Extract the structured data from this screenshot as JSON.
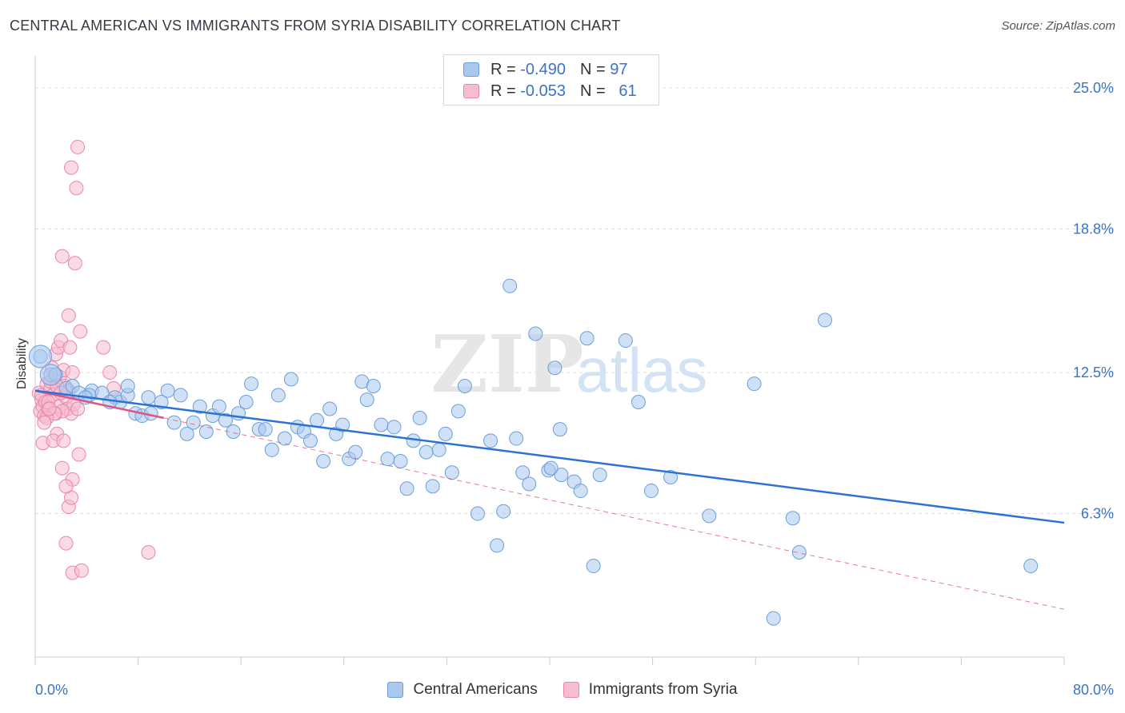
{
  "title": "CENTRAL AMERICAN VS IMMIGRANTS FROM SYRIA DISABILITY CORRELATION CHART",
  "source": "Source: ZipAtlas.com",
  "watermark": {
    "zip": "ZIP",
    "atlas": "atlas"
  },
  "legend_top": [
    {
      "r_label": "R =",
      "r_value": "-0.490",
      "n_label": "N =",
      "n_value": "97"
    },
    {
      "r_label": "R =",
      "r_value": "-0.053",
      "n_label": "N =",
      "n_value": "61"
    }
  ],
  "colors": {
    "blue_fill": "#aac8ee",
    "blue_stroke": "#6a9fdc",
    "blue_line": "#2a72d4",
    "pink_fill": "#f6bcd0",
    "pink_stroke": "#ea86a8",
    "pink_line": "#e05588",
    "axis_text": "#3a73c8",
    "grid": "#dddddd"
  },
  "chart_data": {
    "type": "scatter",
    "xlabel": "",
    "ylabel": "Disability",
    "xlim": [
      0,
      80
    ],
    "ylim": [
      0,
      26.4
    ],
    "x_tick_labels": [
      {
        "value": 0,
        "label": "0.0%"
      },
      {
        "value": 80,
        "label": "80.0%"
      }
    ],
    "y_tick_labels": [
      {
        "value": 6.3,
        "label": "6.3%"
      },
      {
        "value": 12.5,
        "label": "12.5%"
      },
      {
        "value": 18.8,
        "label": "18.8%"
      },
      {
        "value": 25.0,
        "label": "25.0%"
      }
    ],
    "grid": "horizontal dashed",
    "legend_position": "bottom",
    "series": [
      {
        "name": "Central Americans",
        "color": "#aac8ee",
        "trend": {
          "x": [
            0,
            80
          ],
          "y": [
            11.7,
            5.9
          ],
          "style": "solid"
        },
        "points": [
          [
            0.4,
            13.2
          ],
          [
            1.2,
            12.4
          ],
          [
            1.6,
            12.4
          ],
          [
            2.4,
            11.8
          ],
          [
            2.9,
            11.9
          ],
          [
            3.4,
            11.6
          ],
          [
            4.4,
            11.7
          ],
          [
            4.2,
            11.5
          ],
          [
            5.2,
            11.6
          ],
          [
            6.2,
            11.4
          ],
          [
            6.6,
            11.2
          ],
          [
            7.2,
            11.5
          ],
          [
            7.2,
            11.9
          ],
          [
            7.8,
            10.7
          ],
          [
            8.3,
            10.6
          ],
          [
            8.8,
            11.4
          ],
          [
            9.0,
            10.7
          ],
          [
            9.8,
            11.2
          ],
          [
            10.3,
            11.7
          ],
          [
            10.8,
            10.3
          ],
          [
            11.3,
            11.5
          ],
          [
            11.8,
            9.8
          ],
          [
            12.3,
            10.3
          ],
          [
            12.8,
            11.0
          ],
          [
            13.3,
            9.9
          ],
          [
            13.8,
            10.6
          ],
          [
            14.3,
            11.0
          ],
          [
            14.8,
            10.4
          ],
          [
            15.4,
            9.9
          ],
          [
            15.8,
            10.7
          ],
          [
            16.4,
            11.2
          ],
          [
            16.8,
            12.0
          ],
          [
            17.4,
            10.0
          ],
          [
            17.9,
            10.0
          ],
          [
            18.4,
            9.1
          ],
          [
            18.9,
            11.5
          ],
          [
            19.4,
            9.6
          ],
          [
            19.9,
            12.2
          ],
          [
            20.4,
            10.1
          ],
          [
            20.9,
            9.9
          ],
          [
            21.4,
            9.5
          ],
          [
            21.9,
            10.4
          ],
          [
            22.4,
            8.6
          ],
          [
            22.9,
            10.9
          ],
          [
            23.4,
            9.8
          ],
          [
            23.9,
            10.2
          ],
          [
            24.4,
            8.7
          ],
          [
            24.9,
            9.0
          ],
          [
            25.4,
            12.1
          ],
          [
            25.8,
            11.3
          ],
          [
            26.3,
            11.9
          ],
          [
            26.9,
            10.2
          ],
          [
            27.4,
            8.7
          ],
          [
            27.9,
            10.1
          ],
          [
            28.4,
            8.6
          ],
          [
            28.9,
            7.4
          ],
          [
            29.4,
            9.5
          ],
          [
            29.9,
            10.5
          ],
          [
            30.4,
            9.0
          ],
          [
            30.9,
            7.5
          ],
          [
            31.4,
            9.1
          ],
          [
            31.9,
            9.8
          ],
          [
            32.4,
            8.1
          ],
          [
            32.9,
            10.8
          ],
          [
            33.4,
            11.9
          ],
          [
            34.4,
            6.3
          ],
          [
            35.4,
            9.5
          ],
          [
            35.9,
            4.9
          ],
          [
            36.4,
            6.4
          ],
          [
            37.4,
            9.6
          ],
          [
            37.9,
            8.1
          ],
          [
            38.4,
            7.6
          ],
          [
            36.9,
            16.3
          ],
          [
            38.9,
            14.2
          ],
          [
            39.9,
            8.2
          ],
          [
            40.4,
            12.7
          ],
          [
            40.9,
            8.0
          ],
          [
            40.1,
            8.3
          ],
          [
            41.9,
            7.7
          ],
          [
            42.4,
            7.3
          ],
          [
            40.8,
            10.0
          ],
          [
            42.9,
            14.0
          ],
          [
            43.9,
            8.0
          ],
          [
            43.4,
            4.0
          ],
          [
            45.9,
            13.9
          ],
          [
            46.9,
            11.2
          ],
          [
            47.9,
            7.3
          ],
          [
            49.4,
            7.9
          ],
          [
            52.4,
            6.2
          ],
          [
            55.9,
            12.0
          ],
          [
            58.9,
            6.1
          ],
          [
            59.4,
            4.6
          ],
          [
            61.4,
            14.8
          ],
          [
            57.4,
            1.7
          ],
          [
            77.4,
            4.0
          ],
          [
            3.9,
            11.4
          ],
          [
            5.8,
            11.2
          ]
        ]
      },
      {
        "name": "Immigrants from Syria",
        "color": "#f6bcd0",
        "trend": {
          "x": [
            0,
            10
          ],
          "y": [
            11.7,
            10.5
          ],
          "style": "solid"
        },
        "trend_extended": {
          "x": [
            0,
            80
          ],
          "y": [
            11.7,
            2.1
          ],
          "style": "dashed"
        },
        "points": [
          [
            0.3,
            11.6
          ],
          [
            0.5,
            11.3
          ],
          [
            0.4,
            10.8
          ],
          [
            0.6,
            11.0
          ],
          [
            0.7,
            10.6
          ],
          [
            0.9,
            12.0
          ],
          [
            0.5,
            11.5
          ],
          [
            0.8,
            11.2
          ],
          [
            1.0,
            10.9
          ],
          [
            1.2,
            11.8
          ],
          [
            0.6,
            9.4
          ],
          [
            1.3,
            12.7
          ],
          [
            1.4,
            11.5
          ],
          [
            1.6,
            10.7
          ],
          [
            1.8,
            11.0
          ],
          [
            1.9,
            12.3
          ],
          [
            1.2,
            12.1
          ],
          [
            1.6,
            13.3
          ],
          [
            1.8,
            13.6
          ],
          [
            2.0,
            13.9
          ],
          [
            2.2,
            12.6
          ],
          [
            2.3,
            11.9
          ],
          [
            2.4,
            11.4
          ],
          [
            2.5,
            10.9
          ],
          [
            2.8,
            10.7
          ],
          [
            2.1,
            10.8
          ],
          [
            2.6,
            11.7
          ],
          [
            2.9,
            12.5
          ],
          [
            3.0,
            11.1
          ],
          [
            2.7,
            13.6
          ],
          [
            3.3,
            22.4
          ],
          [
            2.1,
            17.6
          ],
          [
            2.6,
            15.0
          ],
          [
            3.1,
            17.3
          ],
          [
            2.1,
            8.3
          ],
          [
            2.9,
            7.8
          ],
          [
            2.6,
            6.6
          ],
          [
            2.4,
            5.0
          ],
          [
            2.9,
            3.7
          ],
          [
            3.6,
            3.8
          ],
          [
            1.7,
            9.8
          ],
          [
            1.4,
            9.5
          ],
          [
            2.8,
            7.0
          ],
          [
            2.4,
            7.5
          ],
          [
            3.5,
            14.3
          ],
          [
            3.3,
            10.9
          ],
          [
            5.3,
            13.6
          ],
          [
            5.8,
            12.5
          ],
          [
            6.1,
            11.8
          ],
          [
            8.8,
            4.6
          ],
          [
            2.8,
            21.5
          ],
          [
            3.2,
            20.6
          ],
          [
            1.0,
            11.2
          ],
          [
            1.5,
            10.7
          ],
          [
            0.9,
            10.5
          ],
          [
            1.7,
            11.9
          ],
          [
            2.2,
            9.5
          ],
          [
            3.4,
            8.9
          ],
          [
            0.7,
            10.3
          ],
          [
            2.0,
            11.6
          ],
          [
            1.1,
            10.9
          ]
        ]
      }
    ]
  }
}
